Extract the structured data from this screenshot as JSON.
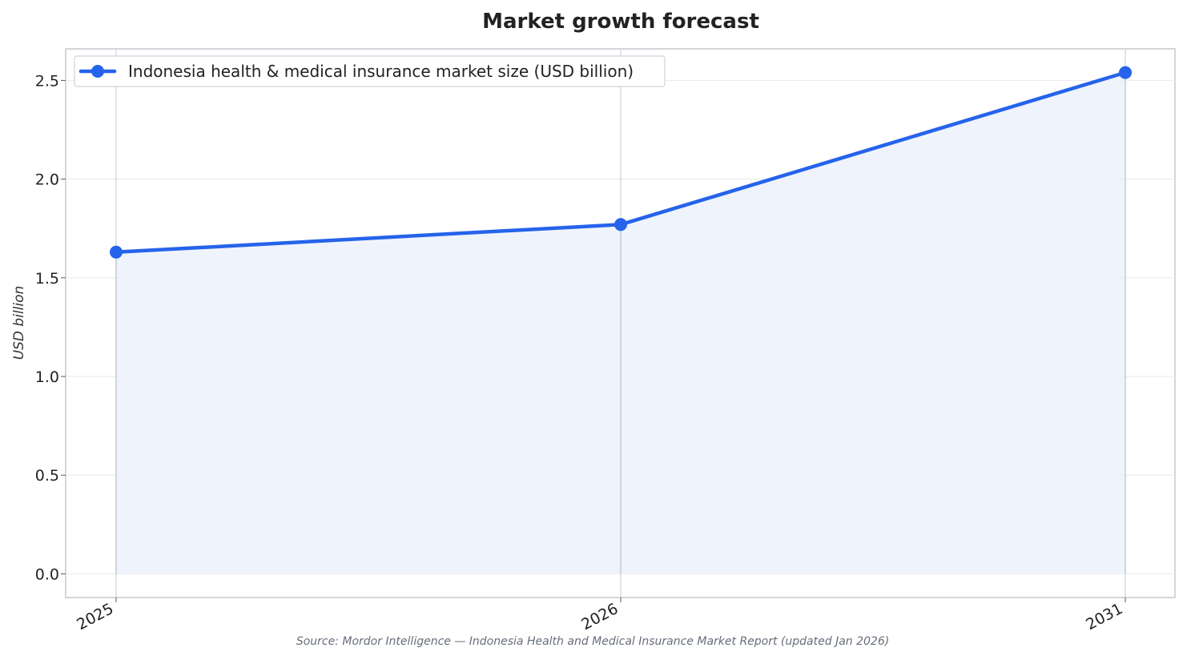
{
  "chart_data": {
    "type": "line",
    "title": "Market growth forecast",
    "xlabel": "",
    "ylabel": "USD billion",
    "categories": [
      "2025",
      "2026",
      "2031"
    ],
    "series": [
      {
        "name": "Indonesia health & medical insurance market size (USD billion)",
        "values": [
          1.63,
          1.77,
          2.54
        ],
        "color": "#2563eb",
        "fill": "#ecf1fc"
      }
    ],
    "ylim": [
      -0.12,
      2.66
    ],
    "yticks": [
      0.0,
      0.5,
      1.0,
      1.5,
      2.0,
      2.5
    ],
    "ytick_labels": [
      "0.0",
      "0.5",
      "1.0",
      "1.5",
      "2.0",
      "2.5"
    ],
    "grid": true,
    "legend": "top-left",
    "source": "Source: Mordor Intelligence — Indonesia Health and Medical Insurance Market Report (updated Jan 2026)"
  }
}
